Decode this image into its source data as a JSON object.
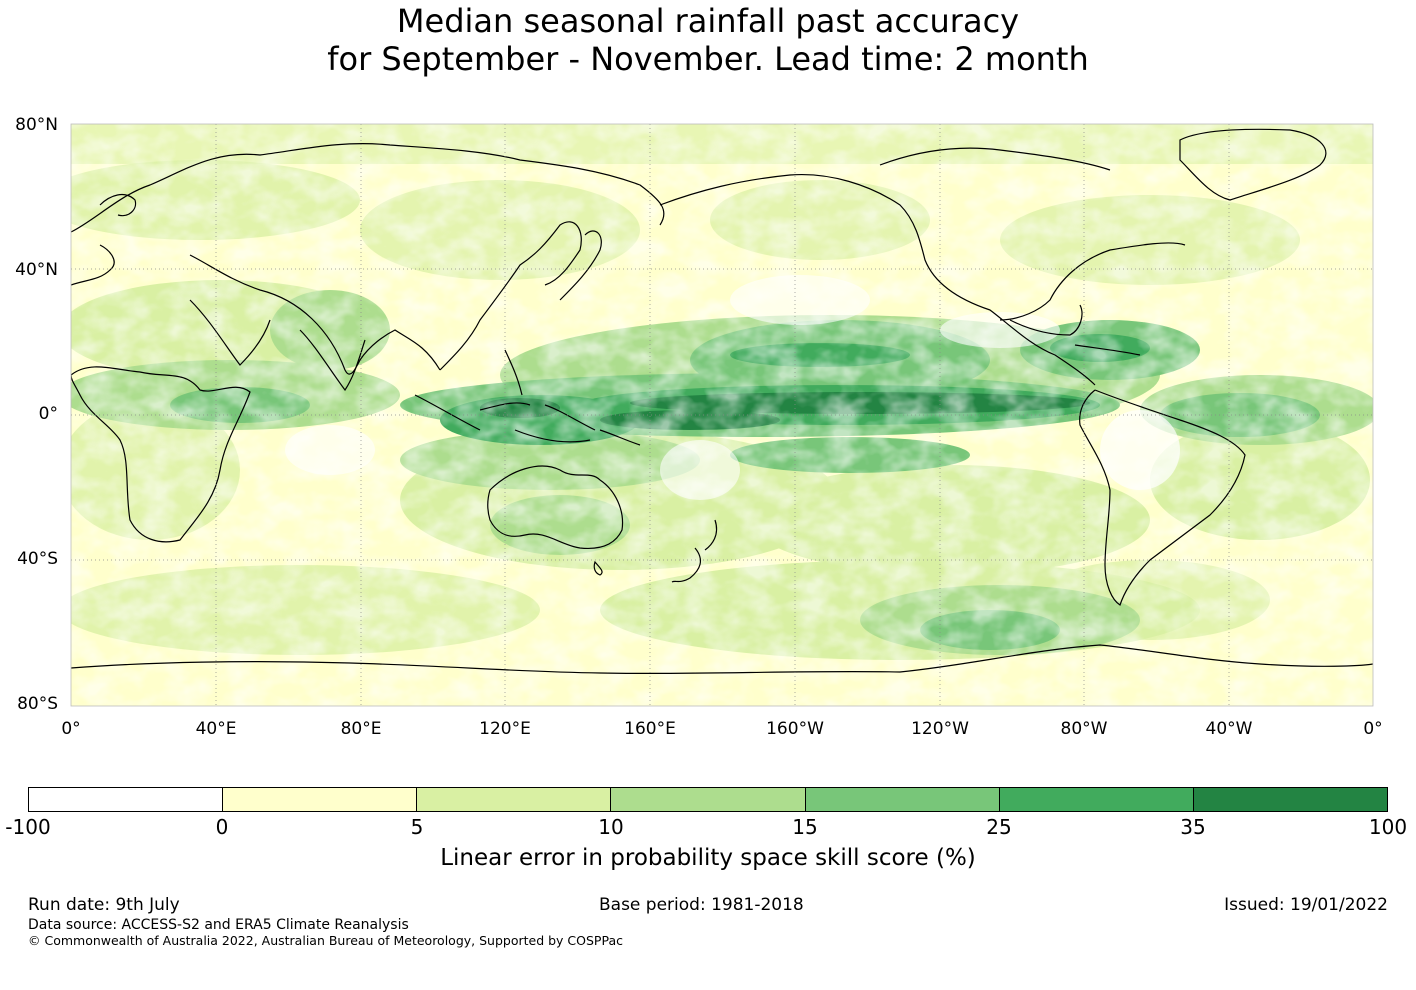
{
  "title": {
    "line1": "Median seasonal rainfall past accuracy",
    "line2": "for September - November. Lead time: 2 month"
  },
  "map": {
    "projection": "equirectangular, Pacific-centred (0° to 360°)",
    "lat_labels": [
      "80°N",
      "40°N",
      "0°",
      "40°S",
      "80°S"
    ],
    "lon_labels": [
      "0°",
      "40°E",
      "80°E",
      "120°E",
      "160°E",
      "160°W",
      "120°W",
      "80°W",
      "40°W",
      "0°"
    ],
    "gridlines": true,
    "coastline_color": "#000000",
    "gridline_color": "#888888"
  },
  "colorbar": {
    "label": "Linear error in probability space skill score (%)",
    "ticks": [
      "-100",
      "0",
      "5",
      "10",
      "15",
      "25",
      "35",
      "100"
    ],
    "colors": [
      "#ffffff",
      "#ffffcc",
      "#d9f0a3",
      "#addd8e",
      "#78c679",
      "#41ab5d",
      "#238443"
    ]
  },
  "footer": {
    "run_date": "Run date: 9th July",
    "base_period": "Base period: 1981-2018",
    "issued": "Issued: 19/01/2022",
    "data_source": "Data source: ACCESS-S2 and ERA5 Climate Reanalysis",
    "copyright": "© Commonwealth of Australia 2022, Australian Bureau of Meteorology, Supported by COSPPac"
  }
}
